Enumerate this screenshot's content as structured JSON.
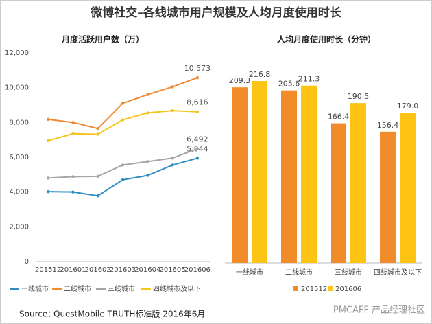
{
  "title": "微博社交–各线城市用户规模及人均月度使用时长",
  "chart_data": [
    {
      "type": "line",
      "title": "月度活跃用户数（万）",
      "categories": [
        "201512",
        "201601",
        "201602",
        "201603",
        "201604",
        "201605",
        "201606"
      ],
      "ylim": [
        0,
        12000
      ],
      "yticks": [
        0,
        {
          "value": 2000,
          "label": "2,000"
        },
        {
          "value": 4000,
          "label": "4,000"
        },
        {
          "value": 6000,
          "label": "6,000"
        },
        {
          "value": 8000,
          "label": "8,000"
        },
        {
          "value": 10000,
          "label": "10,000"
        },
        {
          "value": 12000,
          "label": "12,000"
        }
      ],
      "grid": false,
      "series": [
        {
          "name": "一线城市",
          "color": "#2e8ec4",
          "values": [
            4020,
            4000,
            3780,
            4700,
            4950,
            5550,
            5944
          ],
          "value_labels": [
            null,
            null,
            null,
            null,
            null,
            null,
            "5,944"
          ]
        },
        {
          "name": "二线城市",
          "color": "#ef8a32",
          "values": [
            8180,
            8000,
            7650,
            9100,
            9600,
            10050,
            10573
          ],
          "value_labels": [
            null,
            null,
            null,
            null,
            null,
            null,
            "10,573"
          ]
        },
        {
          "name": "三线城市",
          "color": "#a6a6a6",
          "values": [
            4800,
            4880,
            4900,
            5550,
            5750,
            5950,
            6492
          ],
          "value_labels": [
            null,
            null,
            null,
            null,
            null,
            null,
            "6,492"
          ]
        },
        {
          "name": "四线城市及以下",
          "color": "#f5c51c",
          "values": [
            6950,
            7350,
            7320,
            8150,
            8550,
            8680,
            8616
          ],
          "value_labels": [
            null,
            null,
            null,
            null,
            null,
            null,
            "8,616"
          ]
        }
      ]
    },
    {
      "type": "bar",
      "title": "人均月度使用时长（分钟）",
      "categories": [
        "一线城市",
        "二线城市",
        "三线城市",
        "四线城市及以下"
      ],
      "series": [
        {
          "name": "201512",
          "color": "#f28b2a",
          "values": [
            209.3,
            205.6,
            166.4,
            156.4
          ],
          "value_labels": [
            "209.3",
            "205.6",
            "166.4",
            "156.4"
          ]
        },
        {
          "name": "201606",
          "color": "#fdc315",
          "values": [
            216.8,
            211.3,
            190.5,
            179.0
          ],
          "value_labels": [
            "216.8",
            "211.3",
            "190.5",
            "179.0"
          ]
        }
      ]
    }
  ],
  "footer": {
    "source_label": "Source：",
    "source": "QuestMobile TRUTH标准版 2016年6月",
    "watermark": "PMCAFF 产品经理社区"
  }
}
